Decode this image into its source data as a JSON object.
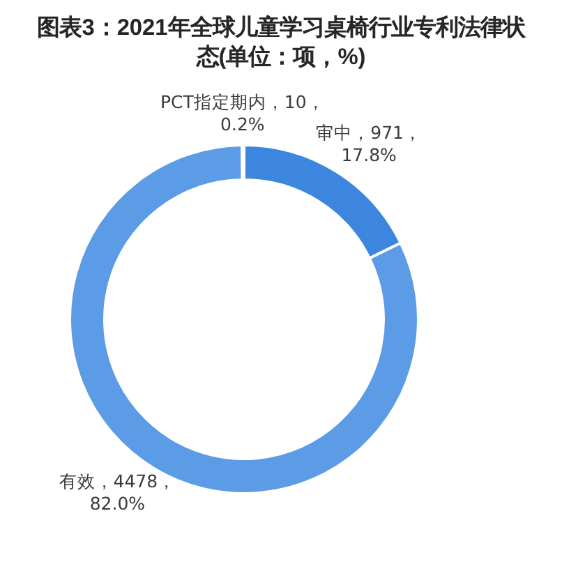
{
  "chart_data": {
    "type": "donut",
    "title": "图表3：2021年全球儿童学习桌椅行业专利法律状态(单位：项，%)",
    "categories": [
      "审中",
      "有效",
      "PCT指定期内"
    ],
    "values": [
      971,
      4478,
      10
    ],
    "colors": [
      "#3d86df",
      "#5c9be6",
      "#9fc2ee"
    ],
    "value_labels": [
      "971，17.8%",
      "4478，82.0%",
      "10，0.2%"
    ]
  }
}
